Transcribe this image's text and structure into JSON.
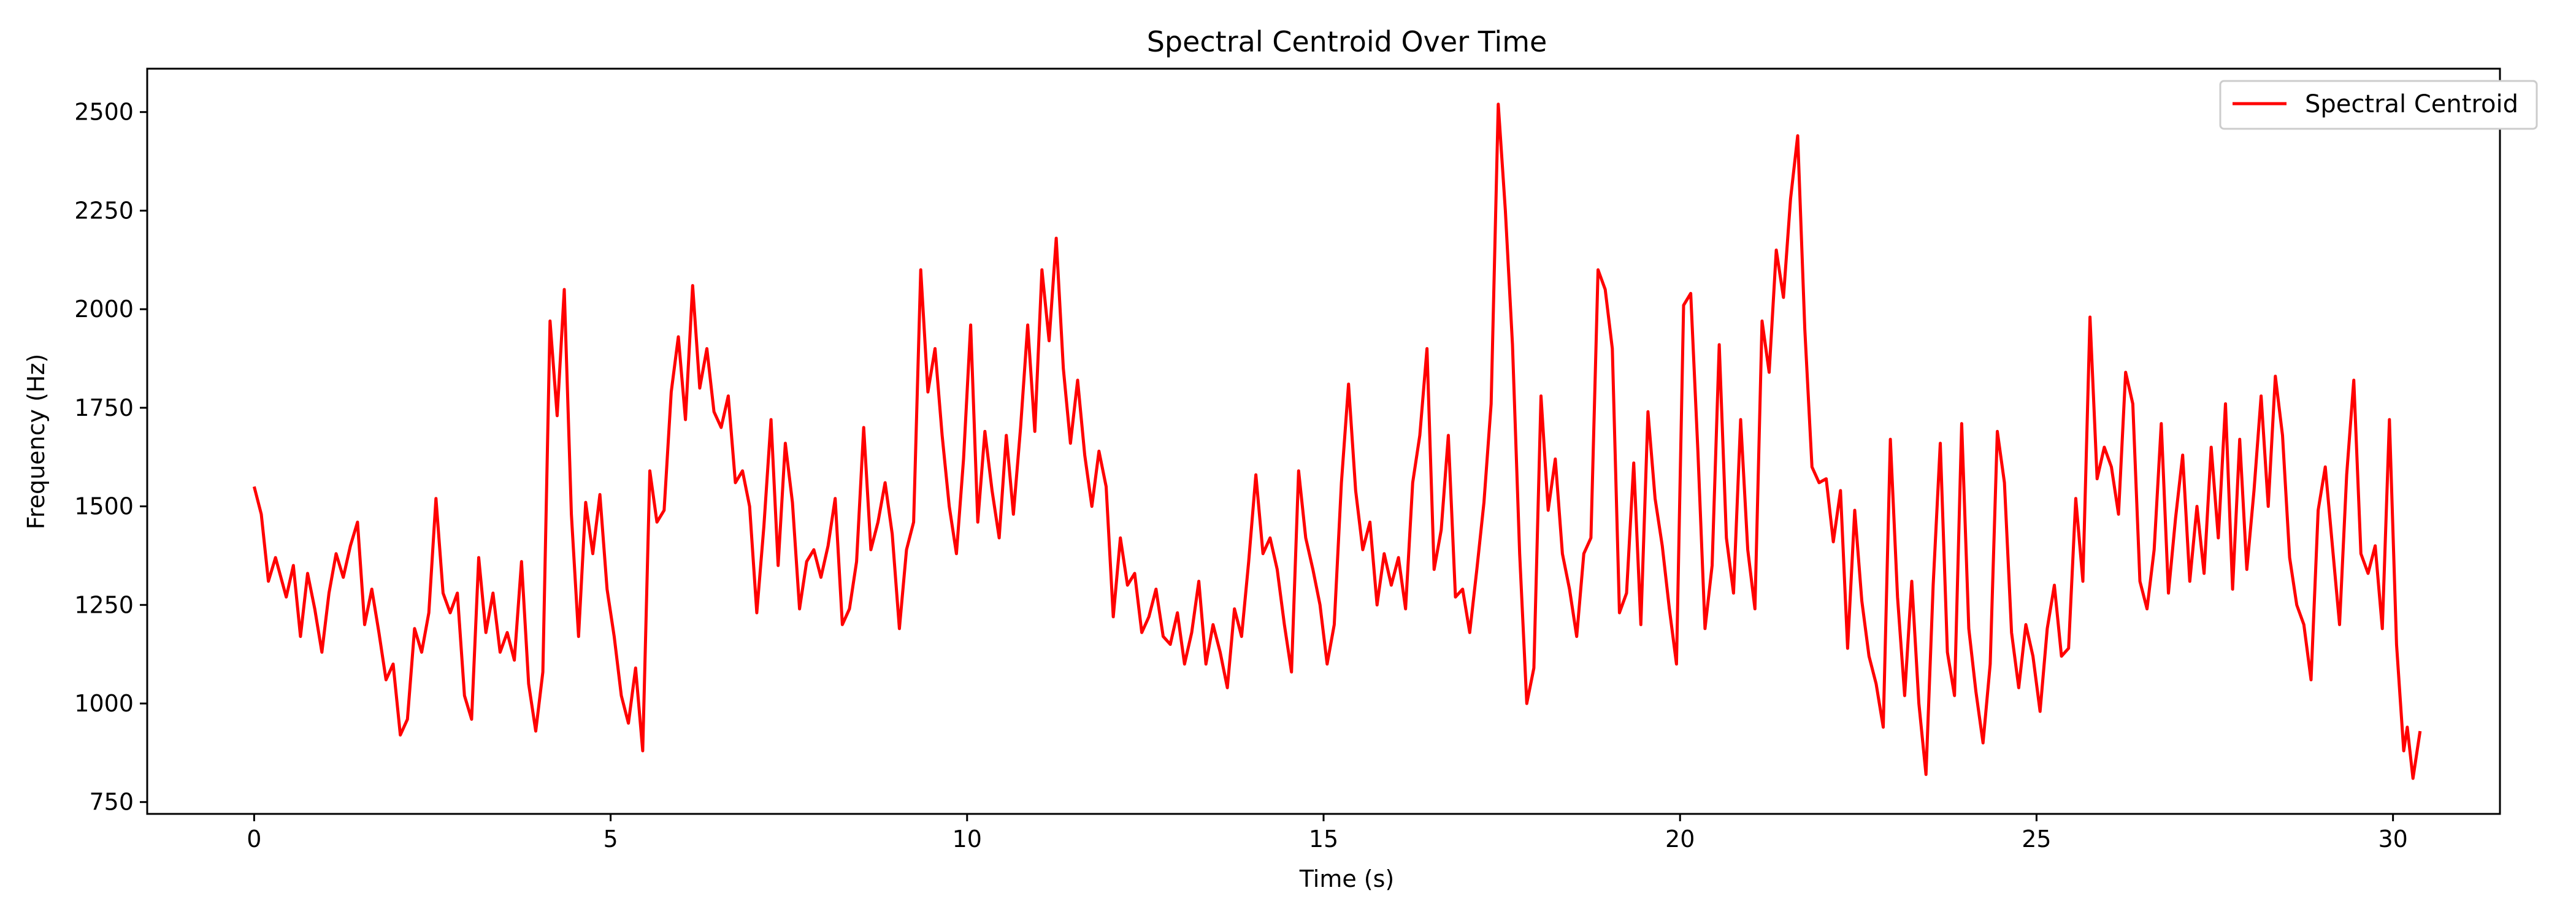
{
  "chart_data": {
    "type": "line",
    "title": "Spectral Centroid Over Time",
    "xlabel": "Time (s)",
    "ylabel": "Frequency (Hz)",
    "xlim": [
      -1.5,
      31.5
    ],
    "ylim": [
      720,
      2610
    ],
    "xticks": [
      0,
      5,
      10,
      15,
      20,
      25,
      30
    ],
    "yticks": [
      750,
      1000,
      1250,
      1500,
      1750,
      2000,
      2250,
      2500
    ],
    "grid": false,
    "legend_position": "top-right",
    "series": [
      {
        "name": "Spectral Centroid",
        "color": "#ff0000",
        "points": [
          [
            0.0,
            1550
          ],
          [
            0.1,
            1480
          ],
          [
            0.2,
            1310
          ],
          [
            0.3,
            1370
          ],
          [
            0.45,
            1270
          ],
          [
            0.55,
            1350
          ],
          [
            0.65,
            1170
          ],
          [
            0.75,
            1330
          ],
          [
            0.85,
            1240
          ],
          [
            0.95,
            1130
          ],
          [
            1.05,
            1280
          ],
          [
            1.15,
            1380
          ],
          [
            1.25,
            1320
          ],
          [
            1.35,
            1400
          ],
          [
            1.45,
            1460
          ],
          [
            1.55,
            1200
          ],
          [
            1.65,
            1290
          ],
          [
            1.75,
            1180
          ],
          [
            1.85,
            1060
          ],
          [
            1.95,
            1100
          ],
          [
            2.05,
            920
          ],
          [
            2.15,
            960
          ],
          [
            2.25,
            1190
          ],
          [
            2.35,
            1130
          ],
          [
            2.45,
            1230
          ],
          [
            2.55,
            1520
          ],
          [
            2.65,
            1280
          ],
          [
            2.75,
            1230
          ],
          [
            2.85,
            1280
          ],
          [
            2.95,
            1020
          ],
          [
            3.05,
            960
          ],
          [
            3.15,
            1370
          ],
          [
            3.25,
            1180
          ],
          [
            3.35,
            1280
          ],
          [
            3.45,
            1130
          ],
          [
            3.55,
            1180
          ],
          [
            3.65,
            1110
          ],
          [
            3.75,
            1360
          ],
          [
            3.85,
            1050
          ],
          [
            3.95,
            930
          ],
          [
            4.05,
            1080
          ],
          [
            4.15,
            1970
          ],
          [
            4.25,
            1730
          ],
          [
            4.35,
            2050
          ],
          [
            4.45,
            1480
          ],
          [
            4.55,
            1170
          ],
          [
            4.65,
            1510
          ],
          [
            4.75,
            1380
          ],
          [
            4.85,
            1530
          ],
          [
            4.95,
            1290
          ],
          [
            5.05,
            1170
          ],
          [
            5.15,
            1020
          ],
          [
            5.25,
            950
          ],
          [
            5.35,
            1090
          ],
          [
            5.45,
            880
          ],
          [
            5.55,
            1590
          ],
          [
            5.65,
            1460
          ],
          [
            5.75,
            1490
          ],
          [
            5.85,
            1790
          ],
          [
            5.95,
            1930
          ],
          [
            6.05,
            1720
          ],
          [
            6.15,
            2060
          ],
          [
            6.25,
            1800
          ],
          [
            6.35,
            1900
          ],
          [
            6.45,
            1740
          ],
          [
            6.55,
            1700
          ],
          [
            6.65,
            1780
          ],
          [
            6.75,
            1560
          ],
          [
            6.85,
            1590
          ],
          [
            6.95,
            1500
          ],
          [
            7.05,
            1230
          ],
          [
            7.15,
            1450
          ],
          [
            7.25,
            1720
          ],
          [
            7.35,
            1350
          ],
          [
            7.45,
            1660
          ],
          [
            7.55,
            1510
          ],
          [
            7.65,
            1240
          ],
          [
            7.75,
            1360
          ],
          [
            7.85,
            1390
          ],
          [
            7.95,
            1320
          ],
          [
            8.05,
            1400
          ],
          [
            8.15,
            1520
          ],
          [
            8.25,
            1200
          ],
          [
            8.35,
            1240
          ],
          [
            8.45,
            1360
          ],
          [
            8.55,
            1700
          ],
          [
            8.65,
            1390
          ],
          [
            8.75,
            1460
          ],
          [
            8.85,
            1560
          ],
          [
            8.95,
            1430
          ],
          [
            9.05,
            1190
          ],
          [
            9.15,
            1390
          ],
          [
            9.25,
            1460
          ],
          [
            9.35,
            2100
          ],
          [
            9.45,
            1790
          ],
          [
            9.55,
            1900
          ],
          [
            9.65,
            1680
          ],
          [
            9.75,
            1500
          ],
          [
            9.85,
            1380
          ],
          [
            9.95,
            1620
          ],
          [
            10.05,
            1960
          ],
          [
            10.15,
            1460
          ],
          [
            10.25,
            1690
          ],
          [
            10.35,
            1540
          ],
          [
            10.45,
            1420
          ],
          [
            10.55,
            1680
          ],
          [
            10.65,
            1480
          ],
          [
            10.75,
            1700
          ],
          [
            10.85,
            1960
          ],
          [
            10.95,
            1690
          ],
          [
            11.05,
            2100
          ],
          [
            11.15,
            1920
          ],
          [
            11.25,
            2180
          ],
          [
            11.35,
            1850
          ],
          [
            11.45,
            1660
          ],
          [
            11.55,
            1820
          ],
          [
            11.65,
            1630
          ],
          [
            11.75,
            1500
          ],
          [
            11.85,
            1640
          ],
          [
            11.95,
            1550
          ],
          [
            12.05,
            1220
          ],
          [
            12.15,
            1420
          ],
          [
            12.25,
            1300
          ],
          [
            12.35,
            1330
          ],
          [
            12.45,
            1180
          ],
          [
            12.55,
            1220
          ],
          [
            12.65,
            1290
          ],
          [
            12.75,
            1170
          ],
          [
            12.85,
            1150
          ],
          [
            12.95,
            1230
          ],
          [
            13.05,
            1100
          ],
          [
            13.15,
            1180
          ],
          [
            13.25,
            1310
          ],
          [
            13.35,
            1100
          ],
          [
            13.45,
            1200
          ],
          [
            13.55,
            1130
          ],
          [
            13.65,
            1040
          ],
          [
            13.75,
            1240
          ],
          [
            13.85,
            1170
          ],
          [
            13.95,
            1360
          ],
          [
            14.05,
            1580
          ],
          [
            14.15,
            1380
          ],
          [
            14.25,
            1420
          ],
          [
            14.35,
            1340
          ],
          [
            14.45,
            1200
          ],
          [
            14.55,
            1080
          ],
          [
            14.65,
            1590
          ],
          [
            14.75,
            1420
          ],
          [
            14.85,
            1340
          ],
          [
            14.95,
            1250
          ],
          [
            15.05,
            1100
          ],
          [
            15.15,
            1200
          ],
          [
            15.25,
            1560
          ],
          [
            15.35,
            1810
          ],
          [
            15.45,
            1540
          ],
          [
            15.55,
            1390
          ],
          [
            15.65,
            1460
          ],
          [
            15.75,
            1250
          ],
          [
            15.85,
            1380
          ],
          [
            15.95,
            1300
          ],
          [
            16.05,
            1370
          ],
          [
            16.15,
            1240
          ],
          [
            16.25,
            1560
          ],
          [
            16.35,
            1680
          ],
          [
            16.45,
            1900
          ],
          [
            16.55,
            1340
          ],
          [
            16.65,
            1440
          ],
          [
            16.75,
            1680
          ],
          [
            16.85,
            1270
          ],
          [
            16.95,
            1290
          ],
          [
            17.05,
            1180
          ],
          [
            17.15,
            1340
          ],
          [
            17.25,
            1510
          ],
          [
            17.35,
            1760
          ],
          [
            17.45,
            2520
          ],
          [
            17.55,
            2250
          ],
          [
            17.65,
            1910
          ],
          [
            17.75,
            1380
          ],
          [
            17.85,
            1000
          ],
          [
            17.95,
            1090
          ],
          [
            18.05,
            1780
          ],
          [
            18.15,
            1490
          ],
          [
            18.25,
            1620
          ],
          [
            18.35,
            1380
          ],
          [
            18.45,
            1290
          ],
          [
            18.55,
            1170
          ],
          [
            18.65,
            1380
          ],
          [
            18.75,
            1420
          ],
          [
            18.85,
            2100
          ],
          [
            18.95,
            2050
          ],
          [
            19.05,
            1900
          ],
          [
            19.15,
            1230
          ],
          [
            19.25,
            1280
          ],
          [
            19.35,
            1610
          ],
          [
            19.45,
            1200
          ],
          [
            19.55,
            1740
          ],
          [
            19.65,
            1520
          ],
          [
            19.75,
            1400
          ],
          [
            19.85,
            1240
          ],
          [
            19.95,
            1100
          ],
          [
            20.05,
            2010
          ],
          [
            20.15,
            2040
          ],
          [
            20.25,
            1640
          ],
          [
            20.35,
            1190
          ],
          [
            20.45,
            1350
          ],
          [
            20.55,
            1910
          ],
          [
            20.65,
            1420
          ],
          [
            20.75,
            1280
          ],
          [
            20.85,
            1720
          ],
          [
            20.95,
            1390
          ],
          [
            21.05,
            1240
          ],
          [
            21.15,
            1970
          ],
          [
            21.25,
            1840
          ],
          [
            21.35,
            2150
          ],
          [
            21.45,
            2030
          ],
          [
            21.55,
            2280
          ],
          [
            21.65,
            2440
          ],
          [
            21.75,
            1950
          ],
          [
            21.85,
            1600
          ],
          [
            21.95,
            1560
          ],
          [
            22.05,
            1570
          ],
          [
            22.15,
            1410
          ],
          [
            22.25,
            1540
          ],
          [
            22.35,
            1140
          ],
          [
            22.45,
            1490
          ],
          [
            22.55,
            1260
          ],
          [
            22.65,
            1120
          ],
          [
            22.75,
            1050
          ],
          [
            22.85,
            940
          ],
          [
            22.95,
            1670
          ],
          [
            23.05,
            1270
          ],
          [
            23.15,
            1020
          ],
          [
            23.25,
            1310
          ],
          [
            23.35,
            1000
          ],
          [
            23.45,
            820
          ],
          [
            23.55,
            1300
          ],
          [
            23.65,
            1660
          ],
          [
            23.75,
            1130
          ],
          [
            23.85,
            1020
          ],
          [
            23.95,
            1710
          ],
          [
            24.05,
            1190
          ],
          [
            24.15,
            1030
          ],
          [
            24.25,
            900
          ],
          [
            24.35,
            1100
          ],
          [
            24.45,
            1690
          ],
          [
            24.55,
            1560
          ],
          [
            24.65,
            1180
          ],
          [
            24.75,
            1040
          ],
          [
            24.85,
            1200
          ],
          [
            24.95,
            1120
          ],
          [
            25.05,
            980
          ],
          [
            25.15,
            1190
          ],
          [
            25.25,
            1300
          ],
          [
            25.35,
            1120
          ],
          [
            25.45,
            1140
          ],
          [
            25.55,
            1520
          ],
          [
            25.65,
            1310
          ],
          [
            25.75,
            1980
          ],
          [
            25.85,
            1570
          ],
          [
            25.95,
            1650
          ],
          [
            26.05,
            1600
          ],
          [
            26.15,
            1480
          ],
          [
            26.25,
            1840
          ],
          [
            26.35,
            1760
          ],
          [
            26.45,
            1310
          ],
          [
            26.55,
            1240
          ],
          [
            26.65,
            1390
          ],
          [
            26.75,
            1710
          ],
          [
            26.85,
            1280
          ],
          [
            26.95,
            1470
          ],
          [
            27.05,
            1630
          ],
          [
            27.15,
            1310
          ],
          [
            27.25,
            1500
          ],
          [
            27.35,
            1330
          ],
          [
            27.45,
            1650
          ],
          [
            27.55,
            1420
          ],
          [
            27.65,
            1760
          ],
          [
            27.75,
            1290
          ],
          [
            27.85,
            1670
          ],
          [
            27.95,
            1340
          ],
          [
            28.05,
            1540
          ],
          [
            28.15,
            1780
          ],
          [
            28.25,
            1500
          ],
          [
            28.35,
            1830
          ],
          [
            28.45,
            1680
          ],
          [
            28.55,
            1370
          ],
          [
            28.65,
            1250
          ],
          [
            28.75,
            1200
          ],
          [
            28.85,
            1060
          ],
          [
            28.95,
            1490
          ],
          [
            29.05,
            1600
          ],
          [
            29.15,
            1400
          ],
          [
            29.25,
            1200
          ],
          [
            29.35,
            1580
          ],
          [
            29.45,
            1820
          ],
          [
            29.55,
            1380
          ],
          [
            29.65,
            1330
          ],
          [
            29.75,
            1400
          ],
          [
            29.85,
            1190
          ],
          [
            29.95,
            1720
          ],
          [
            30.05,
            1150
          ],
          [
            30.15,
            880
          ],
          [
            30.2,
            940
          ],
          [
            30.28,
            810
          ],
          [
            30.38,
            930
          ]
        ]
      }
    ]
  }
}
